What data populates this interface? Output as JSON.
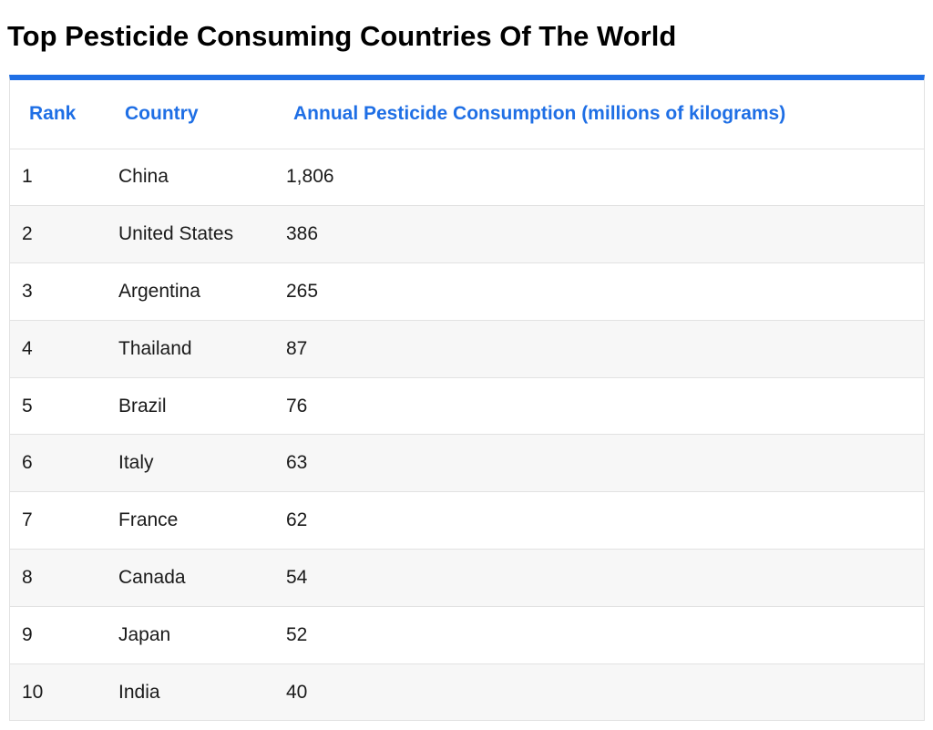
{
  "page": {
    "title": "Top Pesticide Consuming Countries Of The World",
    "accent_color": "#1f6fe5"
  },
  "table": {
    "headers": {
      "rank": "Rank",
      "country": "Country",
      "value": "Annual Pesticide Consumption (millions of kilograms)"
    },
    "rows": [
      {
        "rank": "1",
        "country": "China",
        "value": "1,806"
      },
      {
        "rank": "2",
        "country": "United States",
        "value": "386"
      },
      {
        "rank": "3",
        "country": "Argentina",
        "value": "265"
      },
      {
        "rank": "4",
        "country": "Thailand",
        "value": "87"
      },
      {
        "rank": "5",
        "country": "Brazil",
        "value": "76"
      },
      {
        "rank": "6",
        "country": "Italy",
        "value": "63"
      },
      {
        "rank": "7",
        "country": "France",
        "value": "62"
      },
      {
        "rank": "8",
        "country": "Canada",
        "value": "54"
      },
      {
        "rank": "9",
        "country": "Japan",
        "value": "52"
      },
      {
        "rank": "10",
        "country": "India",
        "value": "40"
      }
    ]
  }
}
